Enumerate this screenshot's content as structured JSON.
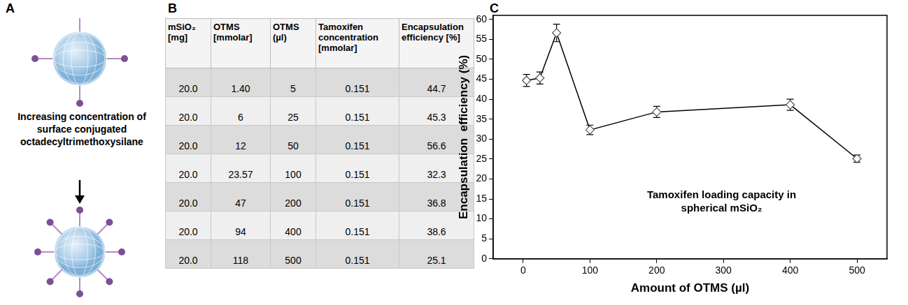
{
  "panel_labels": [
    "A",
    "B",
    "C"
  ],
  "diagram": {
    "text": "Increasing concentration of surface conjugated octadecyltrimethoxysilane"
  },
  "table": {
    "header": [
      "mSiO₂ [mg]",
      "OTMS [mmolar]",
      "OTMS (µl)",
      "Tamoxifen concentration [mmolar]",
      "Encapsulation efficiency [%]"
    ],
    "rows": [
      [
        "20.0",
        "1.40",
        "5",
        "0.151",
        "44.7"
      ],
      [
        "20.0",
        "6",
        "25",
        "0.151",
        "45.3"
      ],
      [
        "20.0",
        "12",
        "50",
        "0.151",
        "56.6"
      ],
      [
        "20.0",
        "23.57",
        "100",
        "0.151",
        "32.3"
      ],
      [
        "20.0",
        "47",
        "200",
        "0.151",
        "36.8"
      ],
      [
        "20.0",
        "94",
        "400",
        "0.151",
        "38.6"
      ],
      [
        "20.0",
        "118",
        "500",
        "0.151",
        "25.1"
      ]
    ]
  },
  "chart_data": {
    "type": "line",
    "annotation": "Tamoxifen loading capacity in spherical mSiO₂",
    "x_label": "Amount of OTMS (µl)",
    "y_label": "Encapsulation  efficiency (%)",
    "x": [
      5,
      25,
      50,
      100,
      200,
      400,
      500
    ],
    "values": [
      44.7,
      45.3,
      56.6,
      32.3,
      36.8,
      38.6,
      25.1
    ],
    "errors": [
      1.5,
      1.5,
      2.2,
      1.2,
      1.4,
      1.4,
      0.9
    ],
    "color": "#000000",
    "marker": "diamond",
    "xlim": [
      -45,
      545
    ],
    "xticks": [
      0,
      100,
      200,
      300,
      400,
      500
    ],
    "ylim": [
      0,
      61
    ],
    "yticks": [
      0,
      5,
      10,
      15,
      20,
      25,
      30,
      35,
      40,
      45,
      50,
      55,
      60
    ],
    "grid": false
  }
}
